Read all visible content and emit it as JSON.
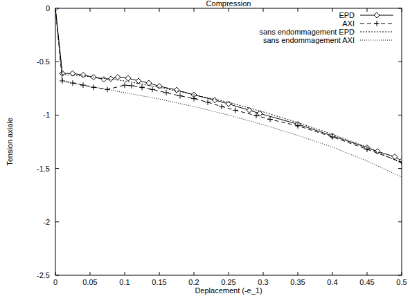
{
  "chart_data": {
    "type": "line",
    "title": "Compression",
    "x_label": "Deplacement (-e_1)",
    "y_label": "Tension axiale",
    "xlim": [
      0,
      0.5
    ],
    "ylim": [
      -2.5,
      0
    ],
    "xticks": [
      0,
      0.05,
      0.1,
      0.15,
      0.2,
      0.25,
      0.3,
      0.35,
      0.4,
      0.45,
      0.5
    ],
    "yticks": [
      -2.5,
      -2,
      -1.5,
      -1,
      -0.5,
      0
    ],
    "legend": "top right",
    "grid": false,
    "series": [
      {
        "name": "EPD",
        "color": "#000000",
        "marker": "diamond",
        "line_style": "solid",
        "x": [
          0,
          0.01,
          0.025,
          0.04,
          0.055,
          0.07,
          0.08,
          0.09,
          0.105,
          0.12,
          0.135,
          0.15,
          0.175,
          0.2,
          0.23,
          0.25,
          0.28,
          0.295,
          0.35,
          0.4,
          0.45,
          0.465,
          0.49,
          0.5
        ],
        "values": [
          0,
          -0.61,
          -0.61,
          -0.625,
          -0.645,
          -0.665,
          -0.66,
          -0.645,
          -0.655,
          -0.68,
          -0.7,
          -0.73,
          -0.765,
          -0.81,
          -0.86,
          -0.895,
          -0.955,
          -0.985,
          -1.085,
          -1.195,
          -1.305,
          -1.34,
          -1.39,
          -1.43
        ]
      },
      {
        "name": "AXI",
        "color": "#000000",
        "marker": "plus",
        "line_style": "dashed",
        "x": [
          0,
          0.01,
          0.025,
          0.04,
          0.055,
          0.075,
          0.1,
          0.11,
          0.125,
          0.14,
          0.16,
          0.18,
          0.2,
          0.22,
          0.24,
          0.26,
          0.29,
          0.31,
          0.35,
          0.4,
          0.45,
          0.5
        ],
        "values": [
          0,
          -0.68,
          -0.7,
          -0.72,
          -0.74,
          -0.76,
          -0.72,
          -0.725,
          -0.74,
          -0.76,
          -0.79,
          -0.82,
          -0.845,
          -0.88,
          -0.92,
          -0.955,
          -1.005,
          -1.04,
          -1.1,
          -1.205,
          -1.32,
          -1.44
        ]
      },
      {
        "name": "sans endommagement EPD",
        "color": "#000000",
        "marker": "none",
        "line_style": "dotted",
        "x": [
          0,
          0.01,
          0.05,
          0.1,
          0.15,
          0.2,
          0.25,
          0.3,
          0.35,
          0.4,
          0.45,
          0.5
        ],
        "values": [
          0,
          -0.62,
          -0.64,
          -0.68,
          -0.74,
          -0.81,
          -0.88,
          -0.97,
          -1.07,
          -1.18,
          -1.3,
          -1.45
        ]
      },
      {
        "name": "sans endommagement AXI",
        "color": "#000000",
        "marker": "none",
        "line_style": "dotted",
        "x": [
          0,
          0.01,
          0.05,
          0.1,
          0.15,
          0.2,
          0.25,
          0.3,
          0.35,
          0.4,
          0.45,
          0.5
        ],
        "values": [
          0,
          -0.68,
          -0.73,
          -0.79,
          -0.85,
          -0.92,
          -1.0,
          -1.09,
          -1.19,
          -1.3,
          -1.43,
          -1.58
        ]
      }
    ]
  }
}
